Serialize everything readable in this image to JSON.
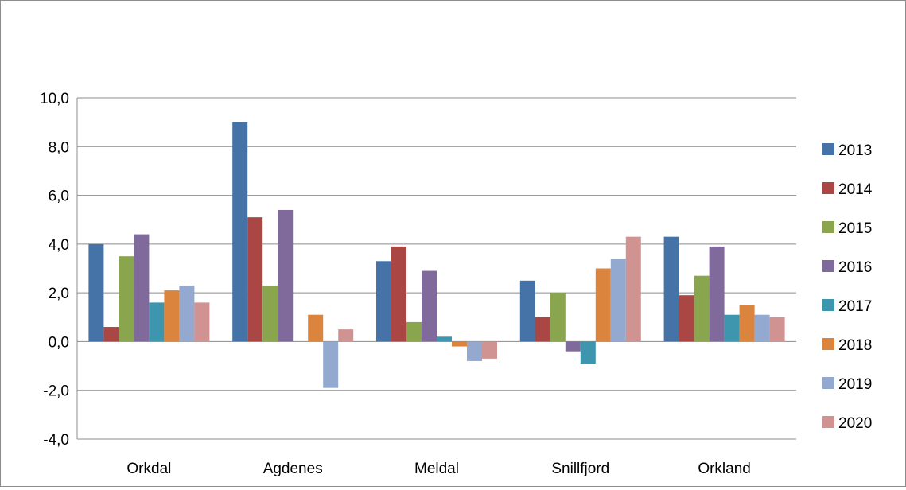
{
  "chart_data": {
    "type": "bar",
    "categories": [
      "Orkdal",
      "Agdenes",
      "Meldal",
      "Snillfjord",
      "Orkland"
    ],
    "series": [
      {
        "name": "2013",
        "color": "#4572A7",
        "values": [
          4.0,
          9.0,
          3.3,
          2.5,
          4.3
        ]
      },
      {
        "name": "2014",
        "color": "#AA4643",
        "values": [
          0.6,
          5.1,
          3.9,
          1.0,
          1.9
        ]
      },
      {
        "name": "2015",
        "color": "#89A54E",
        "values": [
          3.5,
          2.3,
          0.8,
          2.0,
          2.7
        ]
      },
      {
        "name": "2016",
        "color": "#80699B",
        "values": [
          4.4,
          5.4,
          2.9,
          -0.4,
          3.9
        ]
      },
      {
        "name": "2017",
        "color": "#3D96AE",
        "values": [
          1.6,
          0.0,
          0.2,
          -0.9,
          1.1
        ]
      },
      {
        "name": "2018",
        "color": "#DB843D",
        "values": [
          2.1,
          1.1,
          -0.2,
          3.0,
          1.5
        ]
      },
      {
        "name": "2019",
        "color": "#93A9CF",
        "values": [
          2.3,
          -1.9,
          -0.8,
          3.4,
          1.1
        ]
      },
      {
        "name": "2020",
        "color": "#D19392",
        "values": [
          1.6,
          0.5,
          -0.7,
          4.3,
          1.0
        ]
      }
    ],
    "yticks": [
      "10,0",
      "8,0",
      "6,0",
      "4,0",
      "2,0",
      "0,0",
      "-2,0",
      "-4,0"
    ],
    "ylim": [
      -4,
      10
    ],
    "grid": true,
    "legend": "right",
    "title": "",
    "xlabel": "",
    "ylabel": ""
  }
}
